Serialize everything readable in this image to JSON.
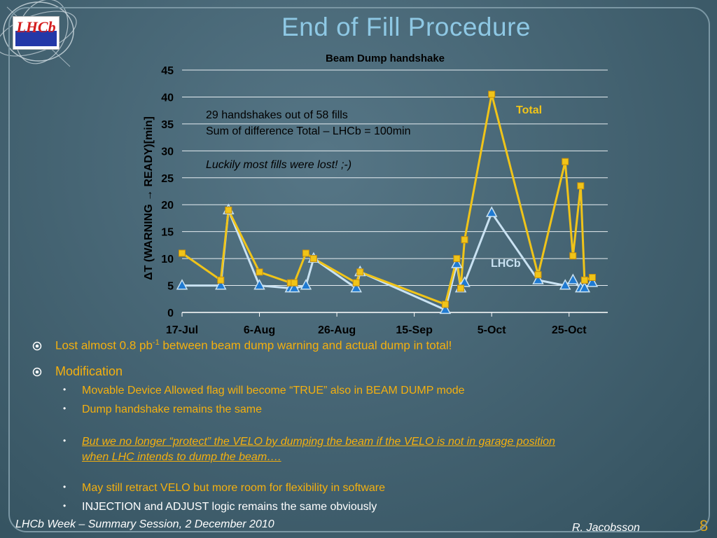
{
  "slide": {
    "title": "End of Fill Procedure",
    "logo_text": "LHCb",
    "footer_left": "LHCb Week – Summary Session, 2 December 2010",
    "footer_right": "R. Jacobsson",
    "page_number": "8"
  },
  "chart_data": {
    "type": "line",
    "title": "Beam Dump  handshake",
    "ylabel": "ΔT (WARNING → READY)[min]",
    "xlabel": "",
    "ylim": [
      0,
      45
    ],
    "yticks": [
      0,
      5,
      10,
      15,
      20,
      25,
      30,
      35,
      40,
      45
    ],
    "xlim": [
      "2010-07-17",
      "2010-11-04"
    ],
    "xticks": [
      {
        "date": "2010-07-17",
        "label": "17-Jul"
      },
      {
        "date": "2010-08-06",
        "label": "6-Aug"
      },
      {
        "date": "2010-08-26",
        "label": "26-Aug"
      },
      {
        "date": "2010-09-15",
        "label": "15-Sep"
      },
      {
        "date": "2010-10-05",
        "label": "5-Oct"
      },
      {
        "date": "2010-10-25",
        "label": "25-Oct"
      }
    ],
    "grid": true,
    "annotations": [
      "29 handshakes out of 58 fills",
      "Sum of difference Total – LHCb = 100min",
      "Luckily most fills were lost! ;-)"
    ],
    "series": [
      {
        "name": "Total",
        "color": "#f0c419",
        "marker": "square",
        "points": [
          {
            "x": "2010-07-17",
            "y": 11
          },
          {
            "x": "2010-07-27",
            "y": 6
          },
          {
            "x": "2010-07-29",
            "y": 19
          },
          {
            "x": "2010-08-06",
            "y": 7.5
          },
          {
            "x": "2010-08-14",
            "y": 5.5
          },
          {
            "x": "2010-08-15",
            "y": 5.5
          },
          {
            "x": "2010-08-18",
            "y": 11
          },
          {
            "x": "2010-08-20",
            "y": 10
          },
          {
            "x": "2010-08-31",
            "y": 5.5
          },
          {
            "x": "2010-09-01",
            "y": 7.5
          },
          {
            "x": "2010-09-23",
            "y": 1.5
          },
          {
            "x": "2010-09-26",
            "y": 10
          },
          {
            "x": "2010-09-27",
            "y": 4.5
          },
          {
            "x": "2010-09-28",
            "y": 13.5
          },
          {
            "x": "2010-10-05",
            "y": 40.5
          },
          {
            "x": "2010-10-17",
            "y": 7
          },
          {
            "x": "2010-10-24",
            "y": 28
          },
          {
            "x": "2010-10-26",
            "y": 10.5
          },
          {
            "x": "2010-10-28",
            "y": 23.5
          },
          {
            "x": "2010-10-29",
            "y": 6
          },
          {
            "x": "2010-10-31",
            "y": 6.5
          }
        ]
      },
      {
        "name": "LHCb",
        "color": "#c9e2f2",
        "marker": "triangle",
        "points": [
          {
            "x": "2010-07-17",
            "y": 5
          },
          {
            "x": "2010-07-27",
            "y": 5
          },
          {
            "x": "2010-07-29",
            "y": 19
          },
          {
            "x": "2010-08-06",
            "y": 5
          },
          {
            "x": "2010-08-14",
            "y": 4.5
          },
          {
            "x": "2010-08-15",
            "y": 4.5
          },
          {
            "x": "2010-08-18",
            "y": 5
          },
          {
            "x": "2010-08-20",
            "y": 10
          },
          {
            "x": "2010-08-31",
            "y": 4.5
          },
          {
            "x": "2010-09-01",
            "y": 7.5
          },
          {
            "x": "2010-09-23",
            "y": 0.5
          },
          {
            "x": "2010-09-26",
            "y": 9
          },
          {
            "x": "2010-09-27",
            "y": 4.5
          },
          {
            "x": "2010-09-28",
            "y": 5.5
          },
          {
            "x": "2010-10-05",
            "y": 18.5
          },
          {
            "x": "2010-10-17",
            "y": 6
          },
          {
            "x": "2010-10-24",
            "y": 5
          },
          {
            "x": "2010-10-26",
            "y": 6
          },
          {
            "x": "2010-10-28",
            "y": 4.5
          },
          {
            "x": "2010-10-29",
            "y": 4.5
          },
          {
            "x": "2010-10-31",
            "y": 5.5
          }
        ]
      }
    ]
  },
  "bullets": {
    "lost_prefix": "Lost almost 0.8 pb",
    "lost_sup": "-1",
    "lost_suffix": " between beam dump warning and actual dump in total!",
    "modification": "Modification",
    "sub1": "Movable Device Allowed flag will become “TRUE” also in BEAM DUMP mode",
    "sub2": "Dump handshake remains the same",
    "sub3_line1": "But we no longer “protect” the VELO by dumping the beam if the VELO is not in garage position",
    "sub3_line2": "when LHC intends to dump the beam….",
    "sub4": "May still retract VELO but more room for flexibility in software",
    "sub5": "INJECTION and ADJUST logic remains the same obviously"
  },
  "icons": {
    "main_bullet": "circle-dot-icon",
    "sub_bullet": "small-dot-icon"
  }
}
